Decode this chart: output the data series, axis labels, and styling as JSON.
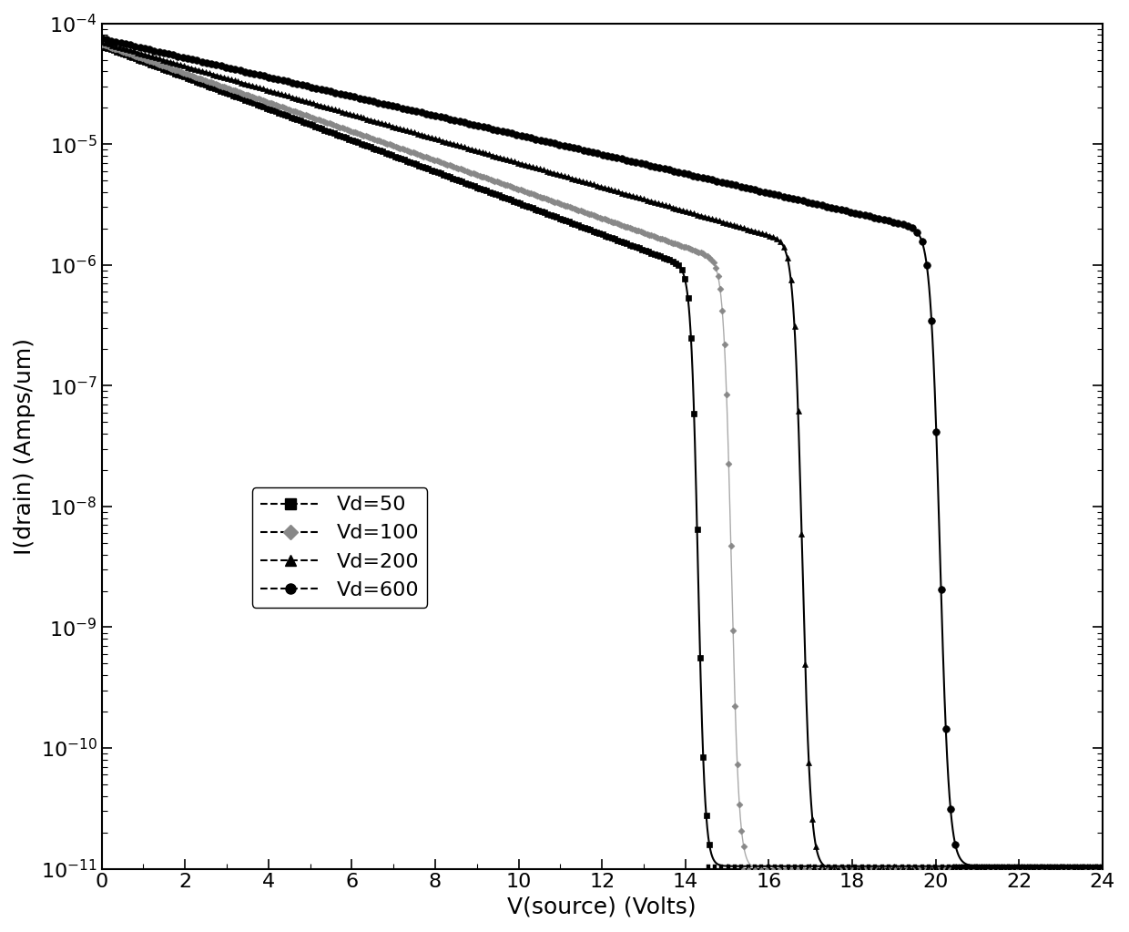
{
  "title": "",
  "xlabel": "V(source) (Volts)",
  "ylabel": "I(drain) (Amps/um)",
  "xlim": [
    0,
    24
  ],
  "ylim_log": [
    -11,
    -4
  ],
  "background_color": "#ffffff",
  "series": [
    {
      "label": "Vd=50",
      "marker": "s",
      "color": "#000000",
      "vth": 14.3,
      "i_on": 6.5e-05,
      "i_off": 1.05e-11,
      "steep": 12.0,
      "on_slope": -0.13,
      "gray": false,
      "n_markers": 200,
      "markersize": 4.5
    },
    {
      "label": "Vd=100",
      "marker": "D",
      "color": "#000000",
      "vth": 15.1,
      "i_on": 6.7e-05,
      "i_off": 1e-11,
      "steep": 11.0,
      "on_slope": -0.12,
      "gray": true,
      "n_markers": 300,
      "markersize": 3.5
    },
    {
      "label": "Vd=200",
      "marker": "^",
      "color": "#000000",
      "vth": 16.8,
      "i_on": 7e-05,
      "i_off": 1e-11,
      "steep": 10.0,
      "on_slope": -0.1,
      "gray": false,
      "n_markers": 200,
      "markersize": 5.0
    },
    {
      "label": "Vd=600",
      "marker": "o",
      "color": "#000000",
      "vth": 20.1,
      "i_on": 7.5e-05,
      "i_off": 1.05e-11,
      "steep": 9.0,
      "on_slope": -0.08,
      "gray": false,
      "n_markers": 180,
      "markersize": 5.5
    }
  ],
  "fontsize_axis": 18,
  "fontsize_tick": 16,
  "fontsize_legend": 16
}
